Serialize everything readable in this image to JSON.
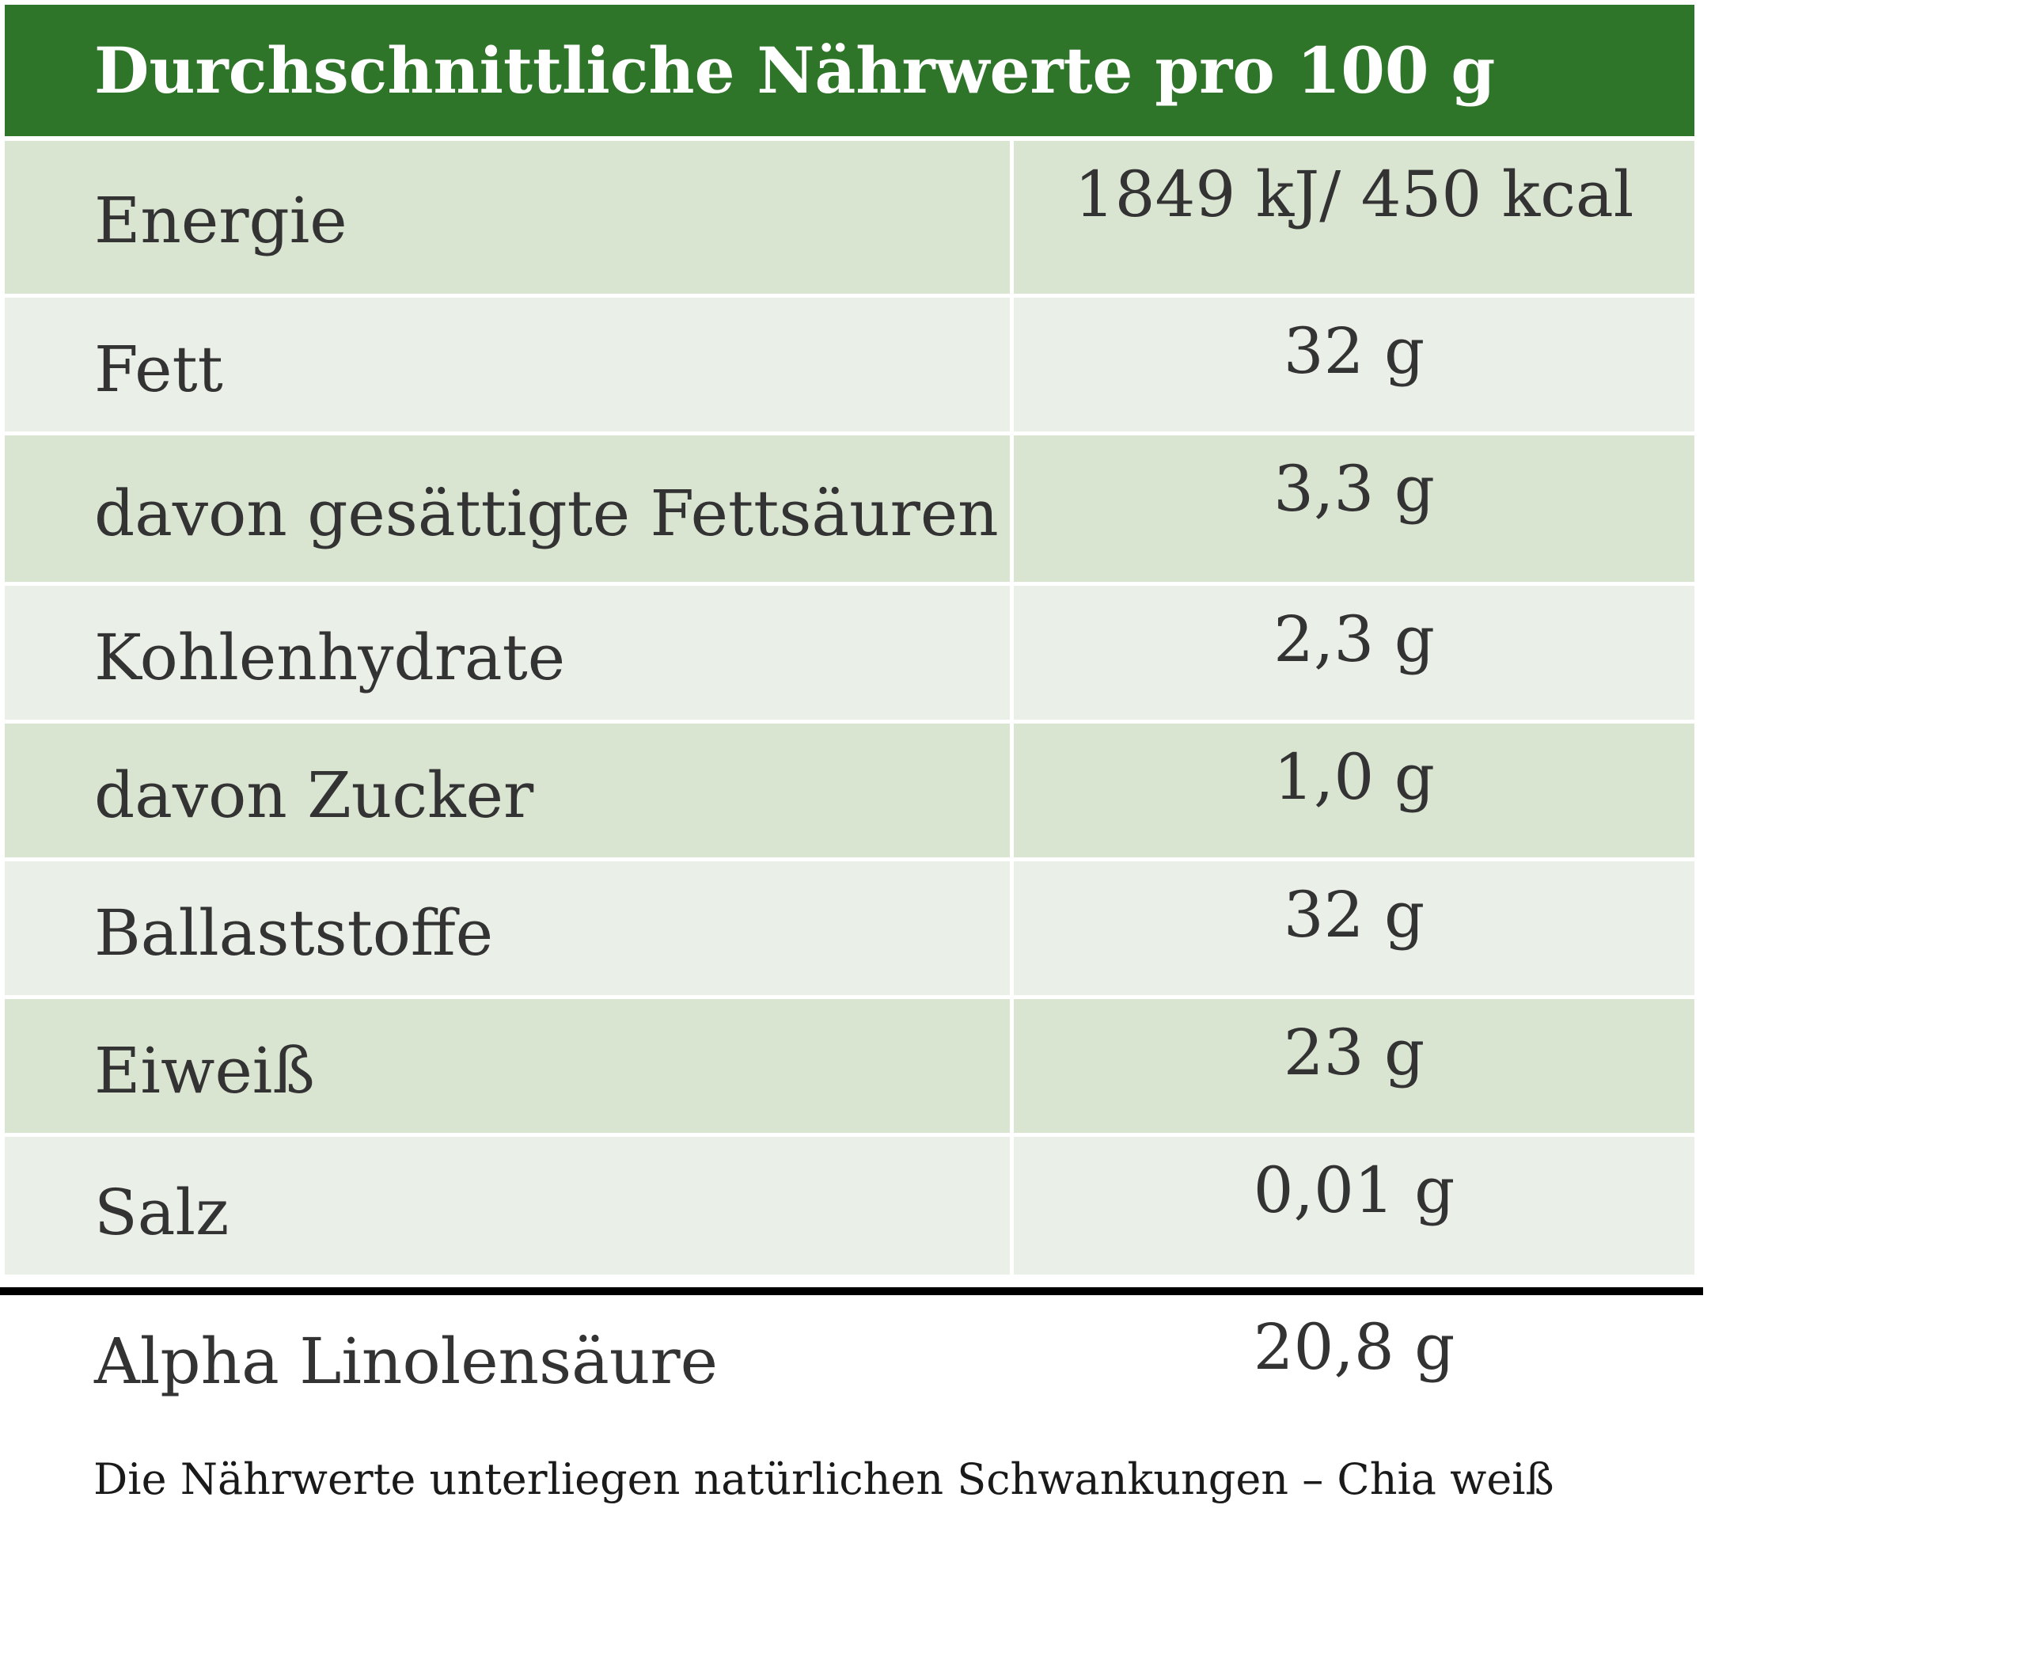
{
  "table": {
    "title": "Durchschnittliche Nährwerte pro 100 g",
    "rows": [
      {
        "label": "Energie",
        "value": "1849 kJ/ 450 kcal"
      },
      {
        "label": "Fett",
        "value": "32 g"
      },
      {
        "label": "davon gesättigte Fettsäuren",
        "value": "3,3 g"
      },
      {
        "label": "Kohlenhydrate",
        "value": "2,3 g"
      },
      {
        "label": "davon Zucker",
        "value": "1,0 g"
      },
      {
        "label": "Ballaststoffe",
        "value": "32 g"
      },
      {
        "label": "Eiweiß",
        "value": "23 g"
      },
      {
        "label": "Salz",
        "value": "0,01 g"
      }
    ],
    "extra": {
      "label": "Alpha Linolensäure",
      "value": "20,8 g"
    }
  },
  "footnote": "Die Nährwerte unterliegen natürlichen Schwankungen – Chia weiß",
  "colors": {
    "header_bg": "#2e7429",
    "row_dark": "#d9e4d1",
    "row_light": "#eaefe7",
    "text": "#333333"
  }
}
